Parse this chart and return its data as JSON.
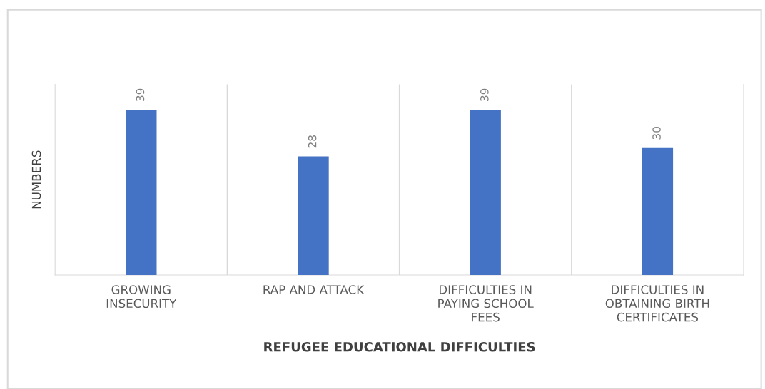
{
  "chart_data": {
    "type": "bar",
    "xlabel": "REFUGEE EDUCATIONAL DIFFICULTIES",
    "ylabel": "NUMBERS",
    "categories": [
      "GROWING\nINSECURITY",
      "RAP AND ATTACK",
      "DIFFICULTIES IN\nPAYING SCHOOL\nFEES",
      "DIFFICULTIES IN\nOBTAINING BIRTH\nCERTIFICATES"
    ],
    "values": [
      39,
      28,
      39,
      30
    ],
    "color": "#4472c4",
    "ylim": [
      0,
      45
    ],
    "grid": "x",
    "data_labels": true,
    "tick_labels": "x"
  }
}
